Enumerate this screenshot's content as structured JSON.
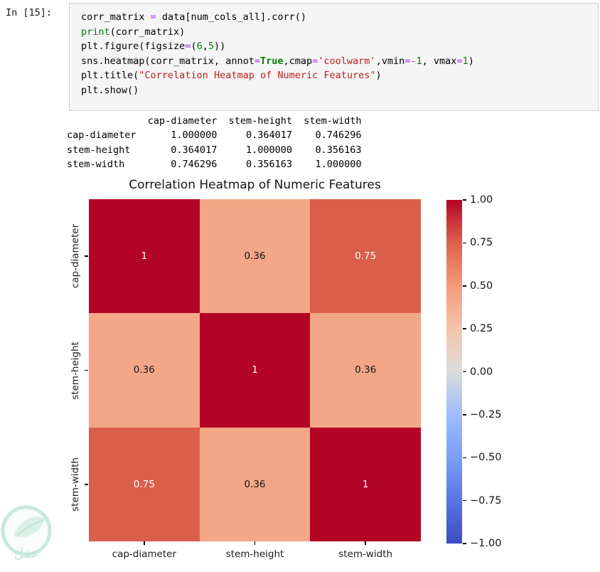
{
  "cell": {
    "prompt": "In [15]:",
    "code_lines": [
      [
        {
          "t": "corr_matrix ",
          "c": "v"
        },
        {
          "t": "=",
          "c": "op"
        },
        {
          "t": " data[num_cols_all].corr()",
          "c": "v"
        }
      ],
      [
        {
          "t": "print",
          "c": "bi"
        },
        {
          "t": "(corr_matrix)",
          "c": "v"
        }
      ],
      [
        {
          "t": "plt.figure(figsize",
          "c": "v"
        },
        {
          "t": "=",
          "c": "op"
        },
        {
          "t": "(",
          "c": "v"
        },
        {
          "t": "6",
          "c": "num"
        },
        {
          "t": ",",
          "c": "v"
        },
        {
          "t": "5",
          "c": "num"
        },
        {
          "t": "))",
          "c": "v"
        }
      ],
      [
        {
          "t": "sns.heatmap(corr_matrix, annot",
          "c": "v"
        },
        {
          "t": "=",
          "c": "op"
        },
        {
          "t": "True",
          "c": "kw"
        },
        {
          "t": ",cmap",
          "c": "v"
        },
        {
          "t": "=",
          "c": "op"
        },
        {
          "t": "'coolwarm'",
          "c": "str"
        },
        {
          "t": ",vmin",
          "c": "v"
        },
        {
          "t": "=",
          "c": "op"
        },
        {
          "t": "-",
          "c": "op"
        },
        {
          "t": "1",
          "c": "num"
        },
        {
          "t": ", vmax",
          "c": "v"
        },
        {
          "t": "=",
          "c": "op"
        },
        {
          "t": "1",
          "c": "num"
        },
        {
          "t": ")",
          "c": "v"
        }
      ],
      [
        {
          "t": "plt.title(",
          "c": "v"
        },
        {
          "t": "\"Correlation Heatmap of Numeric Features\"",
          "c": "str"
        },
        {
          "t": ")",
          "c": "v"
        }
      ],
      [
        {
          "t": "plt.show()",
          "c": "v"
        }
      ]
    ]
  },
  "output": {
    "lines": [
      "              cap-diameter  stem-height  stem-width",
      "cap-diameter      1.000000     0.364017    0.746296",
      "stem-height       0.364017     1.000000    0.356163",
      "stem-width        0.746296     0.356163    1.000000"
    ]
  },
  "chart_data": {
    "type": "heatmap",
    "title": "Correlation Heatmap of Numeric Features",
    "x_labels": [
      "cap-diameter",
      "stem-height",
      "stem-width"
    ],
    "y_labels": [
      "cap-diameter",
      "stem-height",
      "stem-width"
    ],
    "values": [
      [
        1.0,
        0.36,
        0.75
      ],
      [
        0.36,
        1.0,
        0.36
      ],
      [
        0.75,
        0.36,
        1.0
      ]
    ],
    "annotations": [
      [
        "1",
        "0.36",
        "0.75"
      ],
      [
        "0.36",
        "1",
        "0.36"
      ],
      [
        "0.75",
        "0.36",
        "1"
      ]
    ],
    "cell_colors": [
      [
        "#b40426",
        "#f3a787",
        "#da5f4b"
      ],
      [
        "#f3a787",
        "#b40426",
        "#f3a787"
      ],
      [
        "#da5f4b",
        "#f3a787",
        "#b40426"
      ]
    ],
    "annotation_colors": [
      [
        "#ffffff",
        "#131313",
        "#ffffff"
      ],
      [
        "#131313",
        "#ffffff",
        "#131313"
      ],
      [
        "#ffffff",
        "#131313",
        "#ffffff"
      ]
    ],
    "cmap": "coolwarm",
    "vmin": -1,
    "vmax": 1,
    "legend_position": "right",
    "colorbar_ticks": [
      "1.00",
      "0.75",
      "0.50",
      "0.25",
      "0.00",
      "−0.25",
      "−0.50",
      "−0.75",
      "−1.00"
    ],
    "colorbar_gradient": [
      "#3b4cc0",
      "#5876e2",
      "#7b9ef8",
      "#9dbdfe",
      "#dddcdb",
      "#f4c4ad",
      "#f49a7b",
      "#de614d",
      "#b40426"
    ]
  },
  "watermark": {
    "text": "عقل"
  }
}
